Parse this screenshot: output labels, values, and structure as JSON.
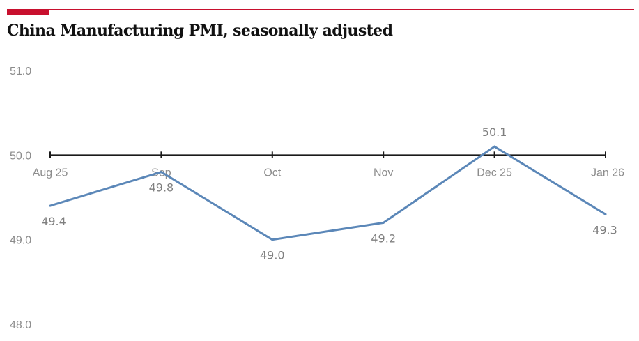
{
  "colors": {
    "accent": "#c8102e",
    "line": "#5b87b8",
    "axis": "#1a1a1a",
    "label": "#8c8c8c"
  },
  "chart_data": {
    "type": "line",
    "title": "China Manufacturing PMI, seasonally adjusted",
    "categories": [
      "Aug 25",
      "Sep",
      "Oct",
      "Nov",
      "Dec 25",
      "Jan 26"
    ],
    "series": [
      {
        "values": [
          49.4,
          49.8,
          49.0,
          49.2,
          50.1,
          49.3
        ]
      }
    ],
    "data_labels": [
      "49.4",
      "49.8",
      "49.0",
      "49.2",
      "50.1",
      "49.3"
    ],
    "y_ticks": [
      "51.0",
      "50.0",
      "49.0",
      "48.0"
    ],
    "ylim": [
      48.0,
      51.0
    ],
    "baseline": 50.0,
    "grid": false,
    "legend": "none"
  }
}
